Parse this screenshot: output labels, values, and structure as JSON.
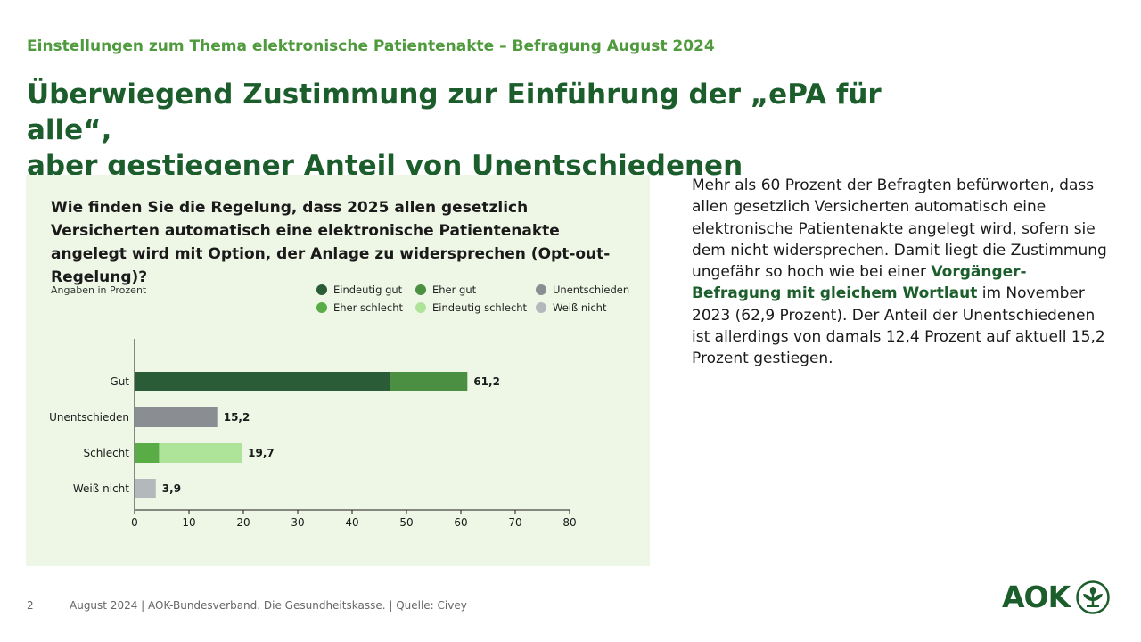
{
  "header": {
    "supertitle": "Einstellungen zum Thema elektronische Patientenakte – Befragung August 2024",
    "headline_line1": "Überwiegend Zustimmung zur Einführung der „ePA für alle“,",
    "headline_line2": "aber gestiegener Anteil von Unentschiedenen"
  },
  "panel": {
    "question": "Wie finden Sie die Regelung, dass 2025 allen gesetzlich Versicherten automatisch eine elektronische Patientenakte angelegt wird mit Option, der Anlage zu widersprechen (Opt-out-Regelung)?",
    "units_label": "Angaben in Prozent"
  },
  "legend": [
    {
      "label": "Eindeutig gut",
      "color": "#2a5c38"
    },
    {
      "label": "Eher gut",
      "color": "#4a8f42"
    },
    {
      "label": "Unentschieden",
      "color": "#8a8d92"
    },
    {
      "label": "Eher schlecht",
      "color": "#5aac46"
    },
    {
      "label": "Eindeutig schlecht",
      "color": "#aee39a"
    },
    {
      "label": "Weiß nicht",
      "color": "#b4b7bc"
    }
  ],
  "chart_data": {
    "type": "bar",
    "orientation": "horizontal",
    "stacked": true,
    "title": "Wie finden Sie die Regelung, dass 2025 allen gesetzlich Versicherten automatisch eine elektronische Patientenakte angelegt wird mit Option, der Anlage zu widersprechen (Opt-out-Regelung)?",
    "xlabel": "Angaben in Prozent",
    "ylabel": "",
    "xlim": [
      0,
      80
    ],
    "xticks": [
      0,
      10,
      20,
      30,
      40,
      50,
      60,
      70,
      80
    ],
    "categories": [
      "Gut",
      "Unentschieden",
      "Schlecht",
      "Weiß nicht"
    ],
    "totals": [
      "61,2",
      "15,2",
      "19,7",
      "3,9"
    ],
    "series": [
      {
        "name": "Eindeutig gut",
        "color": "#2a5c38",
        "values": [
          47.0,
          0,
          0,
          0
        ]
      },
      {
        "name": "Eher gut",
        "color": "#4a8f42",
        "values": [
          14.2,
          0,
          0,
          0
        ]
      },
      {
        "name": "Unentschieden",
        "color": "#8a8d92",
        "values": [
          0,
          15.2,
          0,
          0
        ]
      },
      {
        "name": "Eher schlecht",
        "color": "#5aac46",
        "values": [
          0,
          0,
          4.5,
          0
        ]
      },
      {
        "name": "Eindeutig schlecht",
        "color": "#aee39a",
        "values": [
          0,
          0,
          15.2,
          0
        ]
      },
      {
        "name": "Weiß nicht",
        "color": "#b4b7bc",
        "values": [
          0,
          0,
          0,
          3.9
        ]
      }
    ],
    "legend_position": "top-right",
    "grid": false
  },
  "body": {
    "text_before": "Mehr als 60 Prozent der Befragten befürworten, dass allen gesetzlich Versicherten automatisch eine elektronische Patientenakte angelegt wird, sofern sie dem nicht widersprechen. Damit liegt die Zustimmung ungefähr so hoch wie bei einer ",
    "text_bold": "Vorgänger-Befragung mit gleichem Wortlaut",
    "text_after": " im November 2023 (62,9 Prozent). Der Anteil der Unentschiedenen ist allerdings von damals 12,4 Prozent auf aktuell 15,2 Prozent gestiegen."
  },
  "footer": {
    "page_number": "2",
    "text": "August 2024  |  AOK-Bundesverband. Die Gesundheitskasse.  |  Quelle: Civey"
  },
  "logo": {
    "wordmark": "AOK",
    "color": "#1b5e2c"
  }
}
